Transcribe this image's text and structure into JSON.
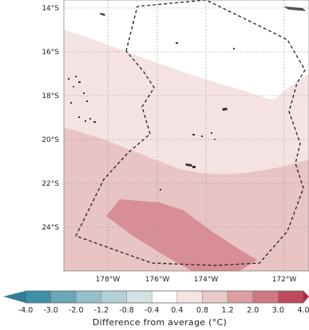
{
  "map": {
    "lat_labels": [
      "14°S",
      "16°S",
      "18°S",
      "20°S",
      "22°S",
      "24°S"
    ],
    "lon_labels": [
      "178°W",
      "176°W",
      "174°W",
      "172°W"
    ],
    "region_outline": "dashed"
  },
  "colorbar": {
    "title": "Difference from average (°C)",
    "ticks": [
      "-4.0",
      "-3.0",
      "-2.0",
      "-1.2",
      "-0.8",
      "-0.4",
      "0.4",
      "0.8",
      "1.2",
      "2.0",
      "3.0",
      "4.0"
    ],
    "colors": [
      "#3f8fa6",
      "#6aa7b8",
      "#95bfca",
      "#b4d0d7",
      "#d3e2e5",
      "#ffffff",
      "#f6e4e4",
      "#eacaca",
      "#de9fa3",
      "#d07882",
      "#c04a5a"
    ],
    "extend_left_color": "#2f7f96",
    "extend_right_color": "#b02a42"
  },
  "anomaly_colors": {
    "band_04_08": "#f5e3e3",
    "band_08_12": "#e8c4c4",
    "band_12_20": "#d88e95"
  }
}
